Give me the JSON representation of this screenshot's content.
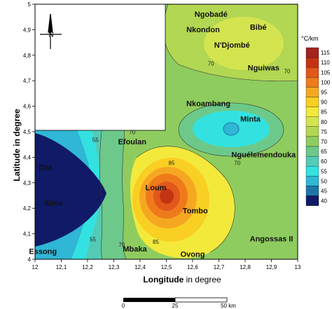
{
  "axes": {
    "x_label_bold": "Longitude",
    "x_label_rest": " in degree",
    "y_label": "Latitude in degree",
    "x_ticks": [
      "12",
      "12,1",
      "12,2",
      "12,3",
      "12,4",
      "12,5",
      "12,6",
      "12,7",
      "12,8",
      "12,9",
      "13"
    ],
    "y_ticks": [
      "4",
      "4,1",
      "4,2",
      "4,3",
      "4,4",
      "4,5",
      "4,6",
      "4,7",
      "4,8",
      "4,9",
      "5"
    ]
  },
  "places": [
    {
      "name": "Ngobadé",
      "lon": 12.67,
      "lat": 4.95
    },
    {
      "name": "Nkondon",
      "lon": 12.64,
      "lat": 4.89
    },
    {
      "name": "Bibé",
      "lon": 12.85,
      "lat": 4.9
    },
    {
      "name": "N'Djombé",
      "lon": 12.75,
      "lat": 4.83
    },
    {
      "name": "Nguiwas",
      "lon": 12.87,
      "lat": 4.74
    },
    {
      "name": "Nkoambang",
      "lon": 12.66,
      "lat": 4.6
    },
    {
      "name": "Minta",
      "lon": 12.82,
      "lat": 4.54
    },
    {
      "name": "Efoulan",
      "lon": 12.37,
      "lat": 4.45
    },
    {
      "name": "Nguélemendouka",
      "lon": 12.87,
      "lat": 4.4
    },
    {
      "name": "Dza",
      "lon": 12.04,
      "lat": 4.35
    },
    {
      "name": "Loum",
      "lon": 12.46,
      "lat": 4.27
    },
    {
      "name": "Sima",
      "lon": 12.07,
      "lat": 4.21
    },
    {
      "name": "Tombo",
      "lon": 12.61,
      "lat": 4.18
    },
    {
      "name": "Angossas II",
      "lon": 12.9,
      "lat": 4.07
    },
    {
      "name": "Essong",
      "lon": 12.03,
      "lat": 4.02
    },
    {
      "name": "Mbaka",
      "lon": 12.38,
      "lat": 4.03
    },
    {
      "name": "Ovong",
      "lon": 12.6,
      "lat": 4.01
    }
  ],
  "contour_labels": [
    {
      "text": "70",
      "lon": 12.67,
      "lat": 4.76
    },
    {
      "text": "70",
      "lon": 12.96,
      "lat": 4.73
    },
    {
      "text": "55",
      "lon": 12.23,
      "lat": 4.46
    },
    {
      "text": "70",
      "lon": 12.37,
      "lat": 4.49
    },
    {
      "text": "85",
      "lon": 12.52,
      "lat": 4.37
    },
    {
      "text": "70",
      "lon": 12.77,
      "lat": 4.37
    },
    {
      "text": "55",
      "lon": 12.22,
      "lat": 4.07
    },
    {
      "text": "70",
      "lon": 12.33,
      "lat": 4.05
    },
    {
      "text": "85",
      "lon": 12.46,
      "lat": 4.06
    }
  ],
  "legend": {
    "title": "°C/km",
    "levels": [
      "115",
      "110",
      "105",
      "100",
      "95",
      "90",
      "85",
      "80",
      "75",
      "70",
      "65",
      "60",
      "55",
      "50",
      "45",
      "40"
    ],
    "colors": [
      "#a3231f",
      "#c53412",
      "#e2571a",
      "#ef7a1c",
      "#f6a722",
      "#f9cf23",
      "#f3e93b",
      "#d4e44f",
      "#b2d752",
      "#8fcc5f",
      "#6cc98a",
      "#53cbb6",
      "#33e2e0",
      "#2fb7d5",
      "#1e76a8",
      "#101a67"
    ]
  },
  "scale_bar": {
    "labels": [
      "0",
      "25",
      "50 km"
    ]
  },
  "north_arrow": {
    "label": "N"
  }
}
